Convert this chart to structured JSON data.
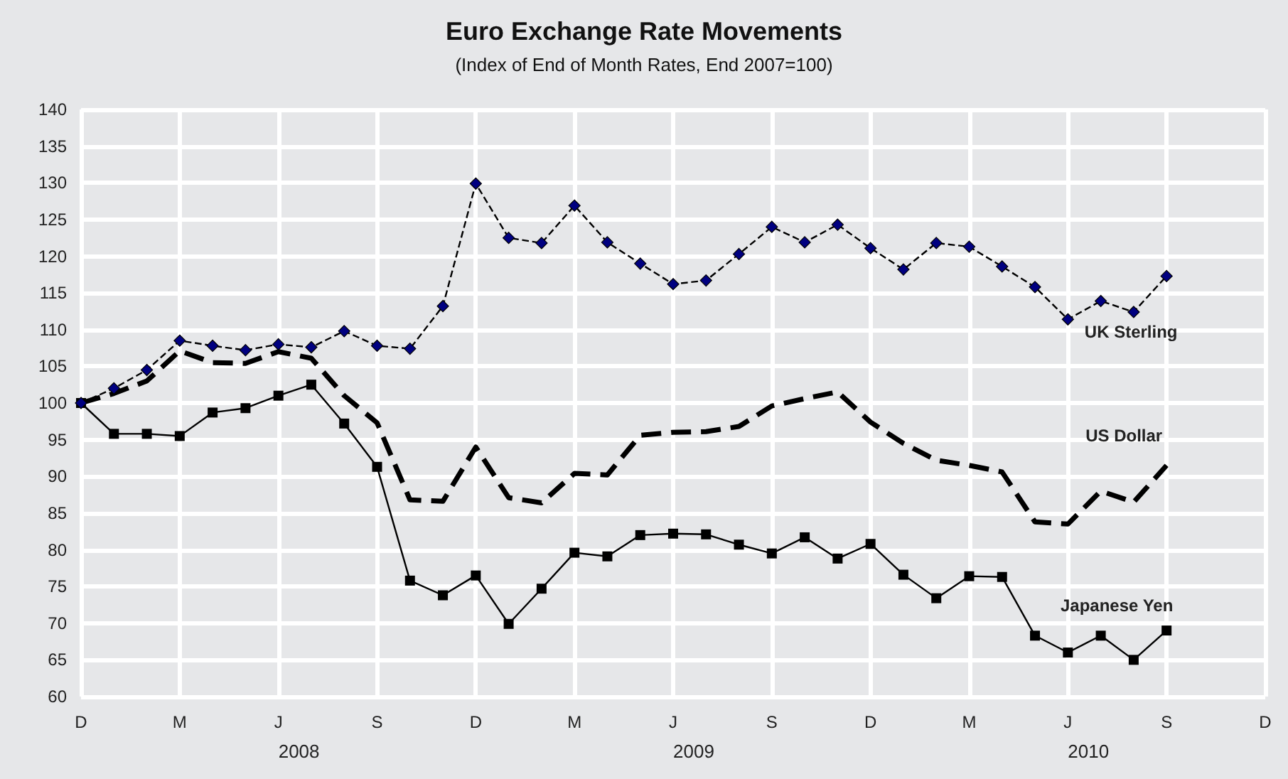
{
  "chart_data": {
    "type": "line",
    "title": "Euro Exchange Rate Movements",
    "subtitle": "(Index of End of Month Rates, End 2007=100)",
    "categories": [
      "D",
      null,
      null,
      "M",
      null,
      null,
      "J",
      null,
      null,
      "S",
      null,
      null,
      "D",
      null,
      null,
      "M",
      null,
      null,
      "J",
      null,
      null,
      "S",
      null,
      null,
      "D",
      null,
      null,
      "M",
      null,
      null,
      "J",
      null,
      null,
      "S",
      null,
      null,
      "D"
    ],
    "series": [
      {
        "name": "UK Sterling",
        "color": "#000080",
        "marker": "diamond",
        "line_style": "dashed",
        "values": [
          100,
          102,
          104.5,
          108.5,
          107.8,
          107.2,
          108,
          107.6,
          109.8,
          107.8,
          107.4,
          113.2,
          129.9,
          122.5,
          121.8,
          126.9,
          121.9,
          119,
          116.2,
          116.7,
          120.3,
          124,
          121.9,
          124.3,
          121.1,
          118.2,
          121.8,
          121.3,
          118.6,
          115.8,
          111.4,
          113.9,
          112.4,
          117.3,
          null,
          null,
          null
        ]
      },
      {
        "name": "US Dollar",
        "color": "#000000",
        "marker": "none",
        "line_style": "dashed",
        "values": [
          100,
          101.3,
          103,
          107.1,
          105.5,
          105.4,
          107,
          106.1,
          101,
          97.3,
          86.8,
          86.6,
          94,
          87.1,
          86.4,
          90.4,
          90.2,
          95.6,
          96,
          96.1,
          96.8,
          99.6,
          100.6,
          101.5,
          97.4,
          94.5,
          92.2,
          91.5,
          90.6,
          83.8,
          83.5,
          88,
          86.5,
          91.5,
          null,
          null,
          null
        ]
      },
      {
        "name": "Japanese Yen",
        "color": "#000000",
        "marker": "square",
        "line_style": "solid",
        "values": [
          100,
          95.8,
          95.8,
          95.5,
          98.7,
          99.3,
          101,
          102.5,
          97.2,
          91.3,
          75.8,
          73.8,
          76.5,
          69.9,
          74.7,
          79.6,
          79.1,
          82,
          82.2,
          82.1,
          80.7,
          79.5,
          81.7,
          78.8,
          80.8,
          76.6,
          73.4,
          76.4,
          76.3,
          68.3,
          66,
          68.3,
          65,
          69,
          null,
          null,
          null
        ]
      }
    ],
    "annotations": [
      "2008",
      "2009",
      "2010"
    ],
    "ylim": [
      60,
      140
    ],
    "yticks": [
      60,
      65,
      70,
      75,
      80,
      85,
      90,
      95,
      100,
      105,
      110,
      115,
      120,
      125,
      130,
      135,
      140
    ],
    "grid": true,
    "legend": false
  }
}
